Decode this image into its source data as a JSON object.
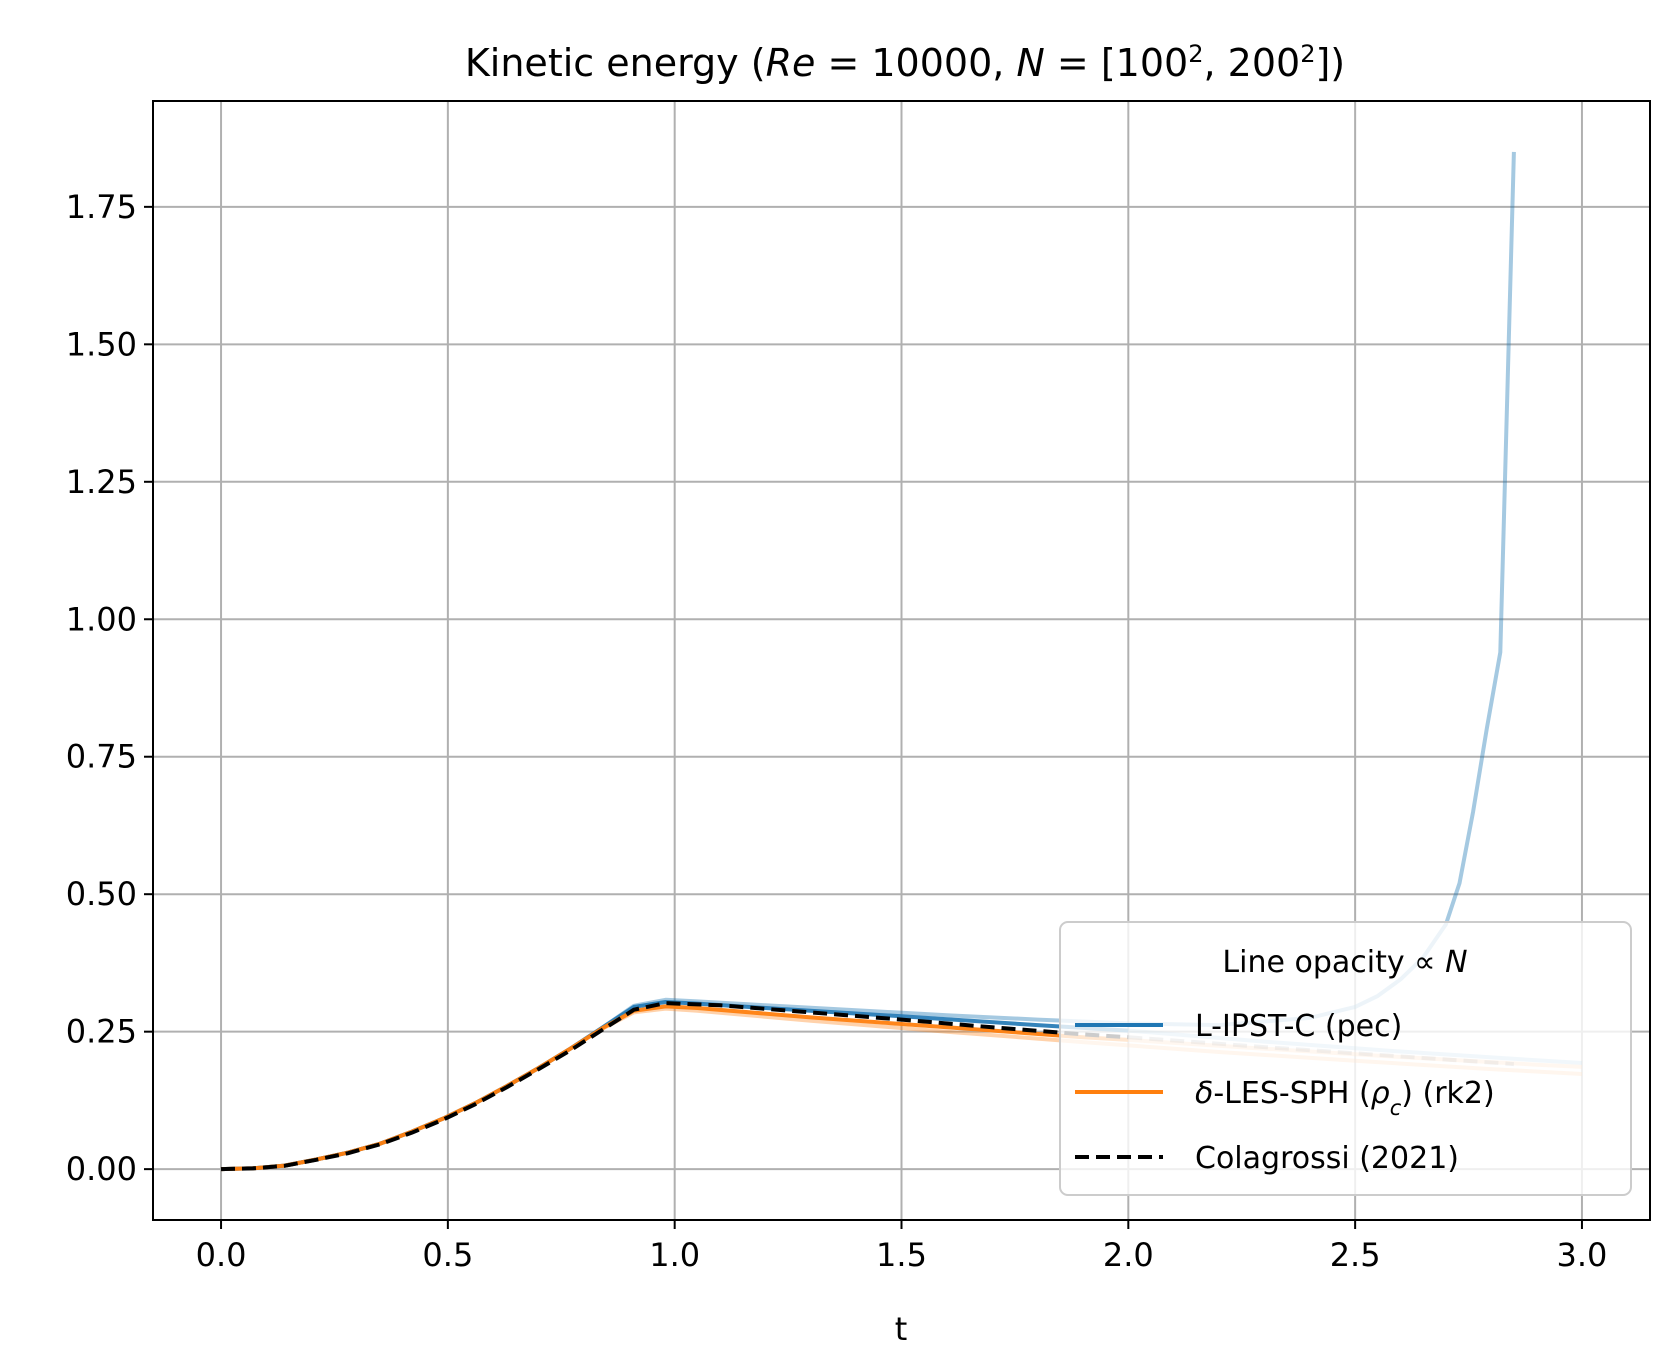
{
  "chart_data": {
    "type": "line",
    "title": {
      "prefix": "Kinetic energy  (",
      "re_symbol": "Re",
      "re_rest": " = 10000, ",
      "n_symbol": "N",
      "n_eq": " = [100",
      "sup1": "2",
      "n_mid": ", 200",
      "sup2": "2",
      "n_end": "])"
    },
    "xlabel": "t",
    "ylabel": "",
    "xlim": [
      -0.15,
      3.15
    ],
    "ylim": [
      -0.0925,
      1.9425
    ],
    "x_ticks": [
      "0.0",
      "0.5",
      "1.0",
      "1.5",
      "2.0",
      "2.5",
      "3.0"
    ],
    "y_ticks": [
      "0.00",
      "0.25",
      "0.50",
      "0.75",
      "1.00",
      "1.25",
      "1.50",
      "1.75"
    ],
    "grid": true,
    "legend": {
      "placement": "lower-right",
      "title_text": "Line opacity ∝ ",
      "title_symbol": "N",
      "entries": {
        "ipst": "L-IPST-C (pec)",
        "delta_prefix": "δ",
        "delta_mid": "-LES-SPH (",
        "rho": "ρ",
        "rho_sub": "c",
        "delta_end": ") (rk2)",
        "colagrossi": "Colagrossi (2021)"
      }
    },
    "colors": {
      "ipst": "#1f77b4",
      "delta": "#ff7f0e",
      "reference": "#000000",
      "grid": "#b0b0b0"
    },
    "series": [
      {
        "key": "ipst_N100",
        "color": "#1f77b4",
        "opacity": 0.4,
        "dash": "solid",
        "x": [
          0,
          0.07,
          0.14,
          0.21,
          0.28,
          0.35,
          0.42,
          0.49,
          0.56,
          0.63,
          0.7,
          0.77,
          0.84,
          0.91,
          0.98,
          1.05,
          1.2,
          1.4,
          1.6,
          1.8,
          2.0,
          2.2,
          2.4,
          2.5,
          2.55,
          2.6,
          2.65,
          2.7,
          2.73,
          2.76,
          2.79,
          2.82,
          2.85
        ],
        "y": [
          0,
          0.0016,
          0.0064,
          0.0176,
          0.03,
          0.046,
          0.068,
          0.092,
          0.12,
          0.151,
          0.184,
          0.219,
          0.257,
          0.297,
          0.308,
          0.305,
          0.298,
          0.289,
          0.28,
          0.272,
          0.265,
          0.262,
          0.275,
          0.295,
          0.315,
          0.345,
          0.385,
          0.445,
          0.52,
          0.65,
          0.8,
          0.94,
          1.85
        ]
      },
      {
        "key": "ipst_N200",
        "color": "#1f77b4",
        "opacity": 0.9,
        "dash": "solid",
        "x": [
          0,
          0.07,
          0.14,
          0.21,
          0.28,
          0.35,
          0.42,
          0.49,
          0.56,
          0.63,
          0.7,
          0.77,
          0.84,
          0.91,
          0.98,
          1.05,
          1.2,
          1.5,
          1.8,
          2.0
        ],
        "y": [
          0,
          0.0016,
          0.0064,
          0.0176,
          0.03,
          0.046,
          0.068,
          0.092,
          0.12,
          0.151,
          0.184,
          0.219,
          0.257,
          0.295,
          0.304,
          0.301,
          0.293,
          0.278,
          0.262,
          0.252
        ]
      },
      {
        "key": "ipst_N200_tail",
        "color": "#1f77b4",
        "opacity": 0.3,
        "dash": "solid",
        "x": [
          2.0,
          2.3,
          2.6,
          2.9,
          3.0
        ],
        "y": [
          0.252,
          0.232,
          0.214,
          0.198,
          0.193
        ]
      },
      {
        "key": "delta_N100",
        "color": "#ff7f0e",
        "opacity": 0.35,
        "dash": "solid",
        "x": [
          0,
          0.07,
          0.14,
          0.21,
          0.28,
          0.35,
          0.42,
          0.49,
          0.56,
          0.63,
          0.7,
          0.77,
          0.84,
          0.91,
          0.98,
          1.05,
          1.3,
          1.6,
          1.9,
          2.2,
          2.5,
          2.8,
          3.0
        ],
        "y": [
          0,
          0.0016,
          0.0064,
          0.0176,
          0.03,
          0.046,
          0.068,
          0.092,
          0.12,
          0.151,
          0.184,
          0.219,
          0.255,
          0.285,
          0.292,
          0.288,
          0.27,
          0.25,
          0.231,
          0.213,
          0.197,
          0.182,
          0.173
        ]
      },
      {
        "key": "delta_N200",
        "color": "#ff7f0e",
        "opacity": 0.95,
        "dash": "solid",
        "x": [
          0,
          0.07,
          0.14,
          0.21,
          0.28,
          0.35,
          0.42,
          0.49,
          0.56,
          0.63,
          0.7,
          0.77,
          0.84,
          0.91,
          0.98,
          1.05,
          1.3,
          1.6,
          1.9,
          2.0
        ],
        "y": [
          0,
          0.0016,
          0.0064,
          0.0176,
          0.03,
          0.046,
          0.068,
          0.092,
          0.12,
          0.151,
          0.184,
          0.219,
          0.256,
          0.288,
          0.296,
          0.293,
          0.276,
          0.258,
          0.24,
          0.235
        ]
      },
      {
        "key": "delta_N200_tail",
        "color": "#ff7f0e",
        "opacity": 0.3,
        "dash": "solid",
        "x": [
          2.0,
          2.3,
          2.6,
          2.9,
          3.0
        ],
        "y": [
          0.235,
          0.219,
          0.204,
          0.19,
          0.186
        ]
      },
      {
        "key": "colagrossi",
        "color": "#000000",
        "opacity": 1.0,
        "dash": "dashed",
        "x": [
          0,
          0.07,
          0.14,
          0.21,
          0.28,
          0.35,
          0.42,
          0.49,
          0.56,
          0.63,
          0.7,
          0.77,
          0.84,
          0.91,
          0.98,
          1.1,
          1.3,
          1.5,
          1.7,
          1.9,
          2.0
        ],
        "y": [
          0,
          0.0014,
          0.006,
          0.017,
          0.029,
          0.045,
          0.066,
          0.09,
          0.118,
          0.149,
          0.182,
          0.216,
          0.253,
          0.29,
          0.302,
          0.298,
          0.285,
          0.272,
          0.258,
          0.245,
          0.24
        ]
      },
      {
        "key": "colagrossi_tail",
        "color": "#000000",
        "opacity": 0.25,
        "dash": "dashed",
        "x": [
          2.0,
          2.3,
          2.6,
          2.85
        ],
        "y": [
          0.24,
          0.222,
          0.205,
          0.191
        ]
      }
    ]
  }
}
